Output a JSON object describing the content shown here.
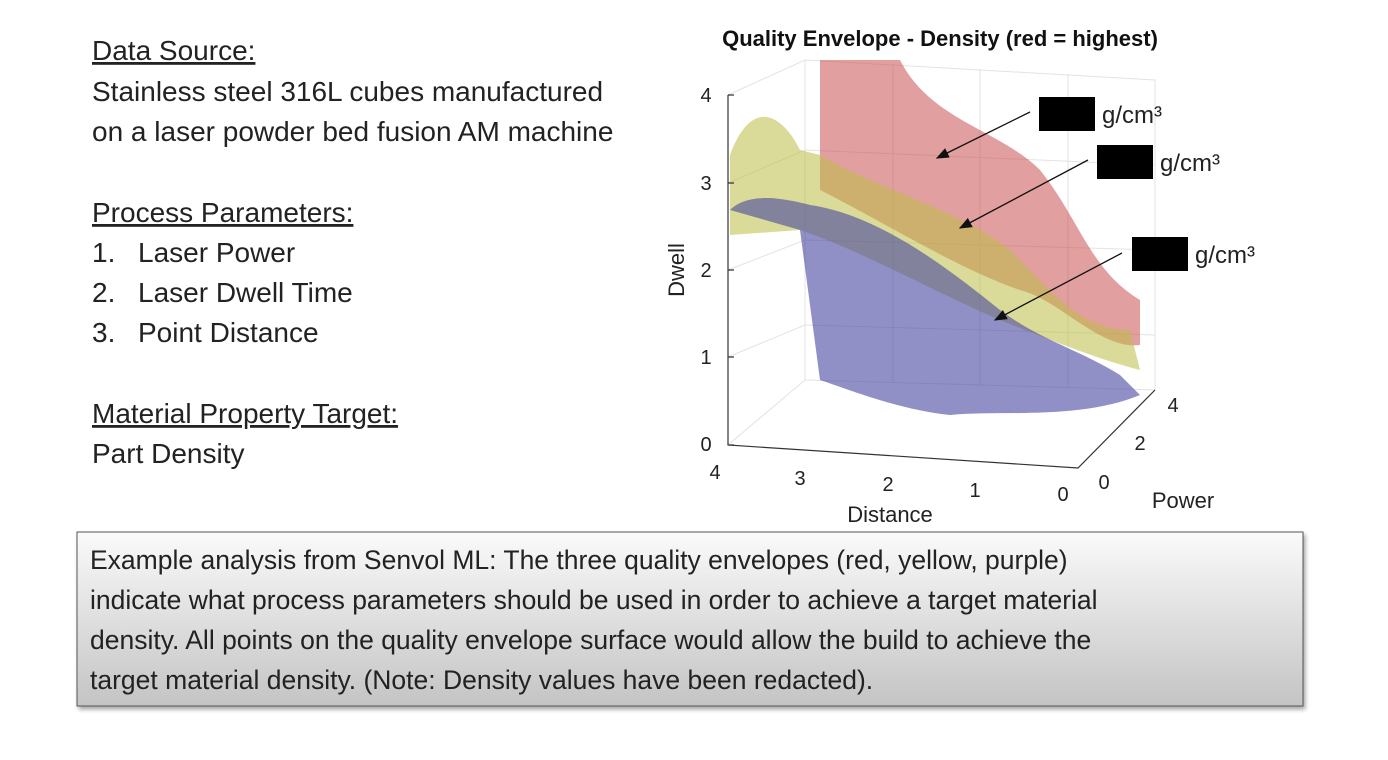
{
  "left_panel": {
    "data_source": {
      "heading": "Data Source:",
      "lines": [
        "Stainless steel 316L cubes manufactured",
        "on a laser powder bed fusion AM machine"
      ]
    },
    "process_parameters": {
      "heading": "Process Parameters:",
      "items": [
        {
          "number": "1.",
          "text": "Laser Power"
        },
        {
          "number": "2.",
          "text": "Laser Dwell Time"
        },
        {
          "number": "3.",
          "text": "Point Distance"
        }
      ]
    },
    "target": {
      "heading": "Material Property Target:",
      "lines": [
        "Part Density"
      ]
    }
  },
  "figure": {
    "title": "Quality Envelope - Density (red = highest)",
    "z_label": "Dwell",
    "x_label": "Distance",
    "y_label": "Power",
    "z_ticks": [
      0,
      1,
      2,
      3,
      4
    ],
    "x_ticks": [
      4,
      3,
      2,
      1,
      0
    ],
    "y_ticks": [
      0,
      2,
      4
    ],
    "annotations": [
      {
        "unit": "g/cm³"
      },
      {
        "unit": "g/cm³"
      },
      {
        "unit": "g/cm³"
      }
    ]
  },
  "caption": {
    "lines": [
      "Example analysis from Senvol ML: The three quality envelopes (red, yellow, purple)",
      "indicate what process parameters should be used in order to achieve a target material",
      "density. All points on the quality envelope surface would allow the build to achieve the",
      "target material density. (Note: Density values have been redacted)."
    ]
  }
}
